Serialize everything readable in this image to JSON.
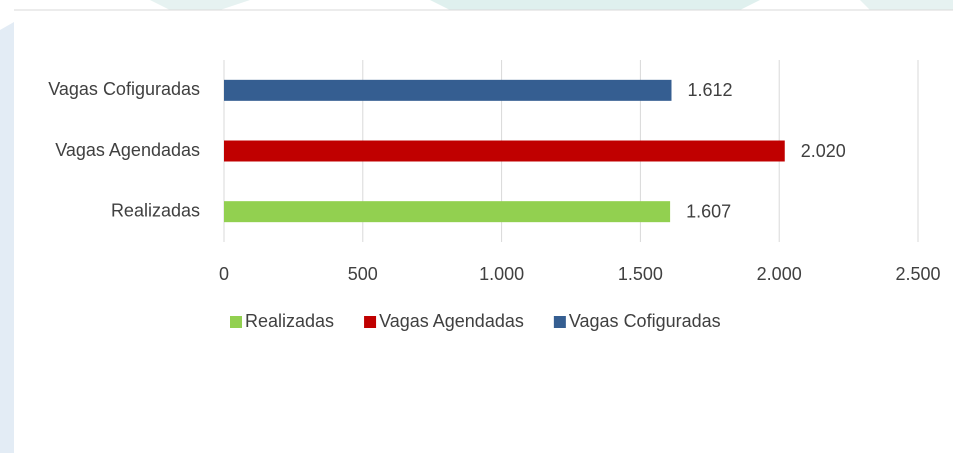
{
  "chart_data": {
    "type": "hbar",
    "series": [
      {
        "name": "Realizadas",
        "color": "#92d050",
        "values": [
          1607
        ],
        "value_labels": [
          "1.607"
        ]
      },
      {
        "name": "Vagas Agendadas",
        "color": "#c00000",
        "values": [
          2020
        ],
        "value_labels": [
          "2.020"
        ]
      },
      {
        "name": "Vagas Cofiguradas",
        "color": "#355e91",
        "values": [
          1612
        ],
        "value_labels": [
          "1.612"
        ]
      }
    ],
    "xlim": [
      0,
      2500
    ],
    "xticks": [
      0,
      500,
      {
        "value": 1000,
        "label": "1.000"
      },
      {
        "value": 1500,
        "label": "1.500"
      },
      {
        "value": 2000,
        "label": "2.000"
      },
      {
        "value": 2500,
        "label": "2.500"
      }
    ],
    "grid": true,
    "legend": "bottom"
  }
}
